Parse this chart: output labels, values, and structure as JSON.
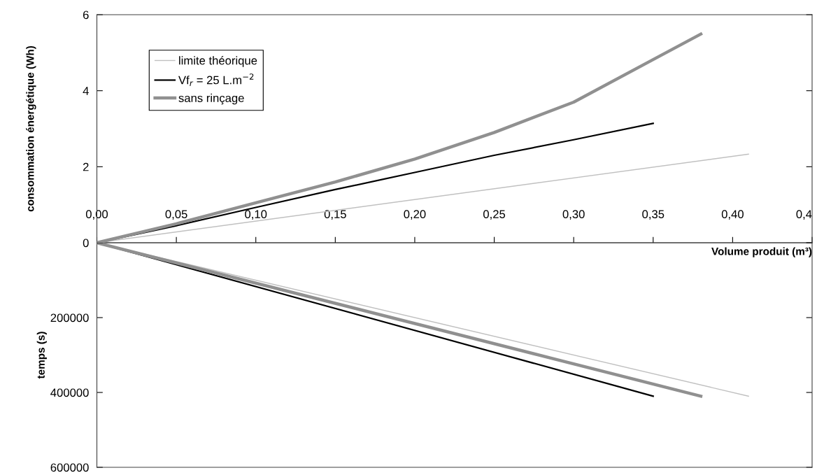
{
  "chart_data": [
    {
      "type": "line",
      "ylabel": "consommation énergétique (Wh)",
      "xlabel": "Volume produit (m³)",
      "xlim": [
        0,
        0.45
      ],
      "xticks": [
        {
          "value": 0,
          "label": "0,00"
        },
        {
          "value": 0.05,
          "label": "0,05"
        },
        {
          "value": 0.1,
          "label": "0,10"
        },
        {
          "value": 0.15,
          "label": "0,15"
        },
        {
          "value": 0.2,
          "label": "0,20"
        },
        {
          "value": 0.25,
          "label": "0,25"
        },
        {
          "value": 0.3,
          "label": "0,30"
        },
        {
          "value": 0.35,
          "label": "0,35"
        },
        {
          "value": 0.4,
          "label": "0,40"
        },
        {
          "value": 0.45,
          "label": "0,4"
        }
      ],
      "ylim": [
        0,
        6
      ],
      "yticks": [
        0,
        2,
        4,
        6
      ],
      "grid": false,
      "legend": "top left",
      "marker": "none",
      "line_style": "solid",
      "series": [
        {
          "name": "limite théorique",
          "color": "#c0c0c0",
          "x": [
            0,
            0.41
          ],
          "values": [
            0,
            2.33
          ]
        },
        {
          "name": "Vf$_{r}$ = 25 L.m$^{−2}$",
          "color": "#000000",
          "x": [
            0,
            0.05,
            0.1,
            0.15,
            0.2,
            0.25,
            0.3,
            0.35
          ],
          "values": [
            0,
            0.45,
            0.93,
            1.4,
            1.85,
            2.3,
            2.71,
            3.14
          ]
        },
        {
          "name": "sans rinçage",
          "color": "#909090",
          "x": [
            0,
            0.05,
            0.1,
            0.15,
            0.2,
            0.25,
            0.3,
            0.35,
            0.38
          ],
          "values": [
            0,
            0.5,
            1.05,
            1.6,
            2.2,
            2.9,
            3.7,
            4.82,
            5.49
          ]
        }
      ]
    },
    {
      "type": "line",
      "ylabel": "temps (s)",
      "xlim": [
        0,
        0.45
      ],
      "ylim": [
        600000,
        0
      ],
      "yticks": [
        {
          "value": 0,
          "label": null
        },
        200000,
        400000,
        600000
      ],
      "tick_labels": "y",
      "grid": false,
      "marker": "none",
      "line_style": "solid",
      "series": [
        {
          "color": "#c0c0c0",
          "x": [
            0,
            0.41
          ],
          "values": [
            0,
            410000
          ]
        },
        {
          "color": "#000000",
          "x": [
            0,
            0.35
          ],
          "values": [
            0,
            410000
          ]
        },
        {
          "color": "#909090",
          "x": [
            0,
            0.38
          ],
          "values": [
            0,
            410000
          ]
        }
      ]
    }
  ]
}
